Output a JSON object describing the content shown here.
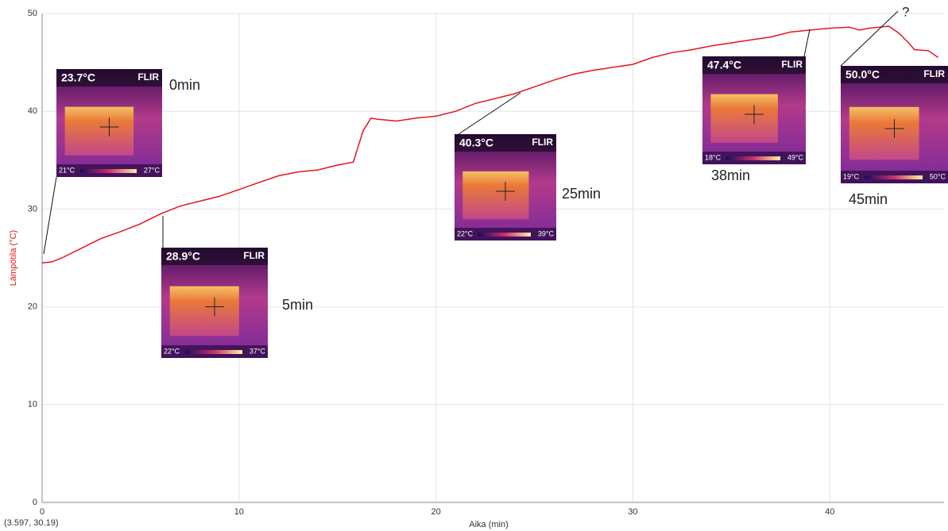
{
  "chart_data": {
    "type": "line",
    "y_label": "Lämpötila (°C)",
    "x_label": "Aika (min)",
    "cursor_readout": "(3.597, 30.19)",
    "question_mark": "?",
    "xlim": [
      0,
      45.8
    ],
    "ylim": [
      0,
      50
    ],
    "xticks": [
      0,
      10,
      20,
      30,
      40
    ],
    "yticks": [
      0,
      10,
      20,
      30,
      40,
      50
    ],
    "grid": true,
    "series": [
      {
        "color": "#e8141c",
        "x": [
          0,
          0.5,
          1,
          2,
          3,
          4,
          5,
          6,
          7,
          8,
          9,
          10,
          11,
          12,
          13,
          14,
          15,
          15.8,
          16.3,
          16.7,
          17,
          18,
          19,
          20,
          21,
          22,
          23,
          24,
          25,
          26,
          27,
          28,
          29,
          30,
          31,
          32,
          33,
          34,
          35,
          36,
          37,
          38,
          39,
          40,
          41,
          41.5,
          42,
          43,
          43.5,
          44,
          44.3,
          45,
          45.5
        ],
        "values": [
          24.5,
          24.6,
          25,
          26,
          27,
          27.7,
          28.5,
          29.5,
          30.3,
          30.8,
          31.3,
          32,
          32.7,
          33.4,
          33.8,
          34,
          34.5,
          34.8,
          38,
          39.3,
          39.2,
          39,
          39.3,
          39.5,
          40,
          40.8,
          41.3,
          41.8,
          42.5,
          43.2,
          43.8,
          44.2,
          44.5,
          44.8,
          45.5,
          46,
          46.3,
          46.7,
          47,
          47.3,
          47.6,
          48.1,
          48.3,
          48.5,
          48.6,
          48.3,
          48.5,
          48.7,
          48,
          47,
          46.3,
          46.2,
          45.5
        ]
      }
    ],
    "insets": [
      {
        "reading": "23.7°C",
        "brand": "FLIR",
        "scale_min": "21°C",
        "scale_max": "27°C",
        "label": "0min"
      },
      {
        "reading": "28.9°C",
        "brand": "FLIR",
        "scale_min": "22°C",
        "scale_max": "37°C",
        "label": "5min"
      },
      {
        "reading": "40.3°C",
        "brand": "FLIR",
        "scale_min": "22°C",
        "scale_max": "39°C",
        "label": "25min"
      },
      {
        "reading": "47.4°C",
        "brand": "FLIR",
        "scale_min": "18°C",
        "scale_max": "49°C",
        "label": "38min"
      },
      {
        "reading": "50.0°C",
        "brand": "FLIR",
        "scale_min": "19°C",
        "scale_max": "50°C",
        "label": "45min"
      }
    ]
  }
}
